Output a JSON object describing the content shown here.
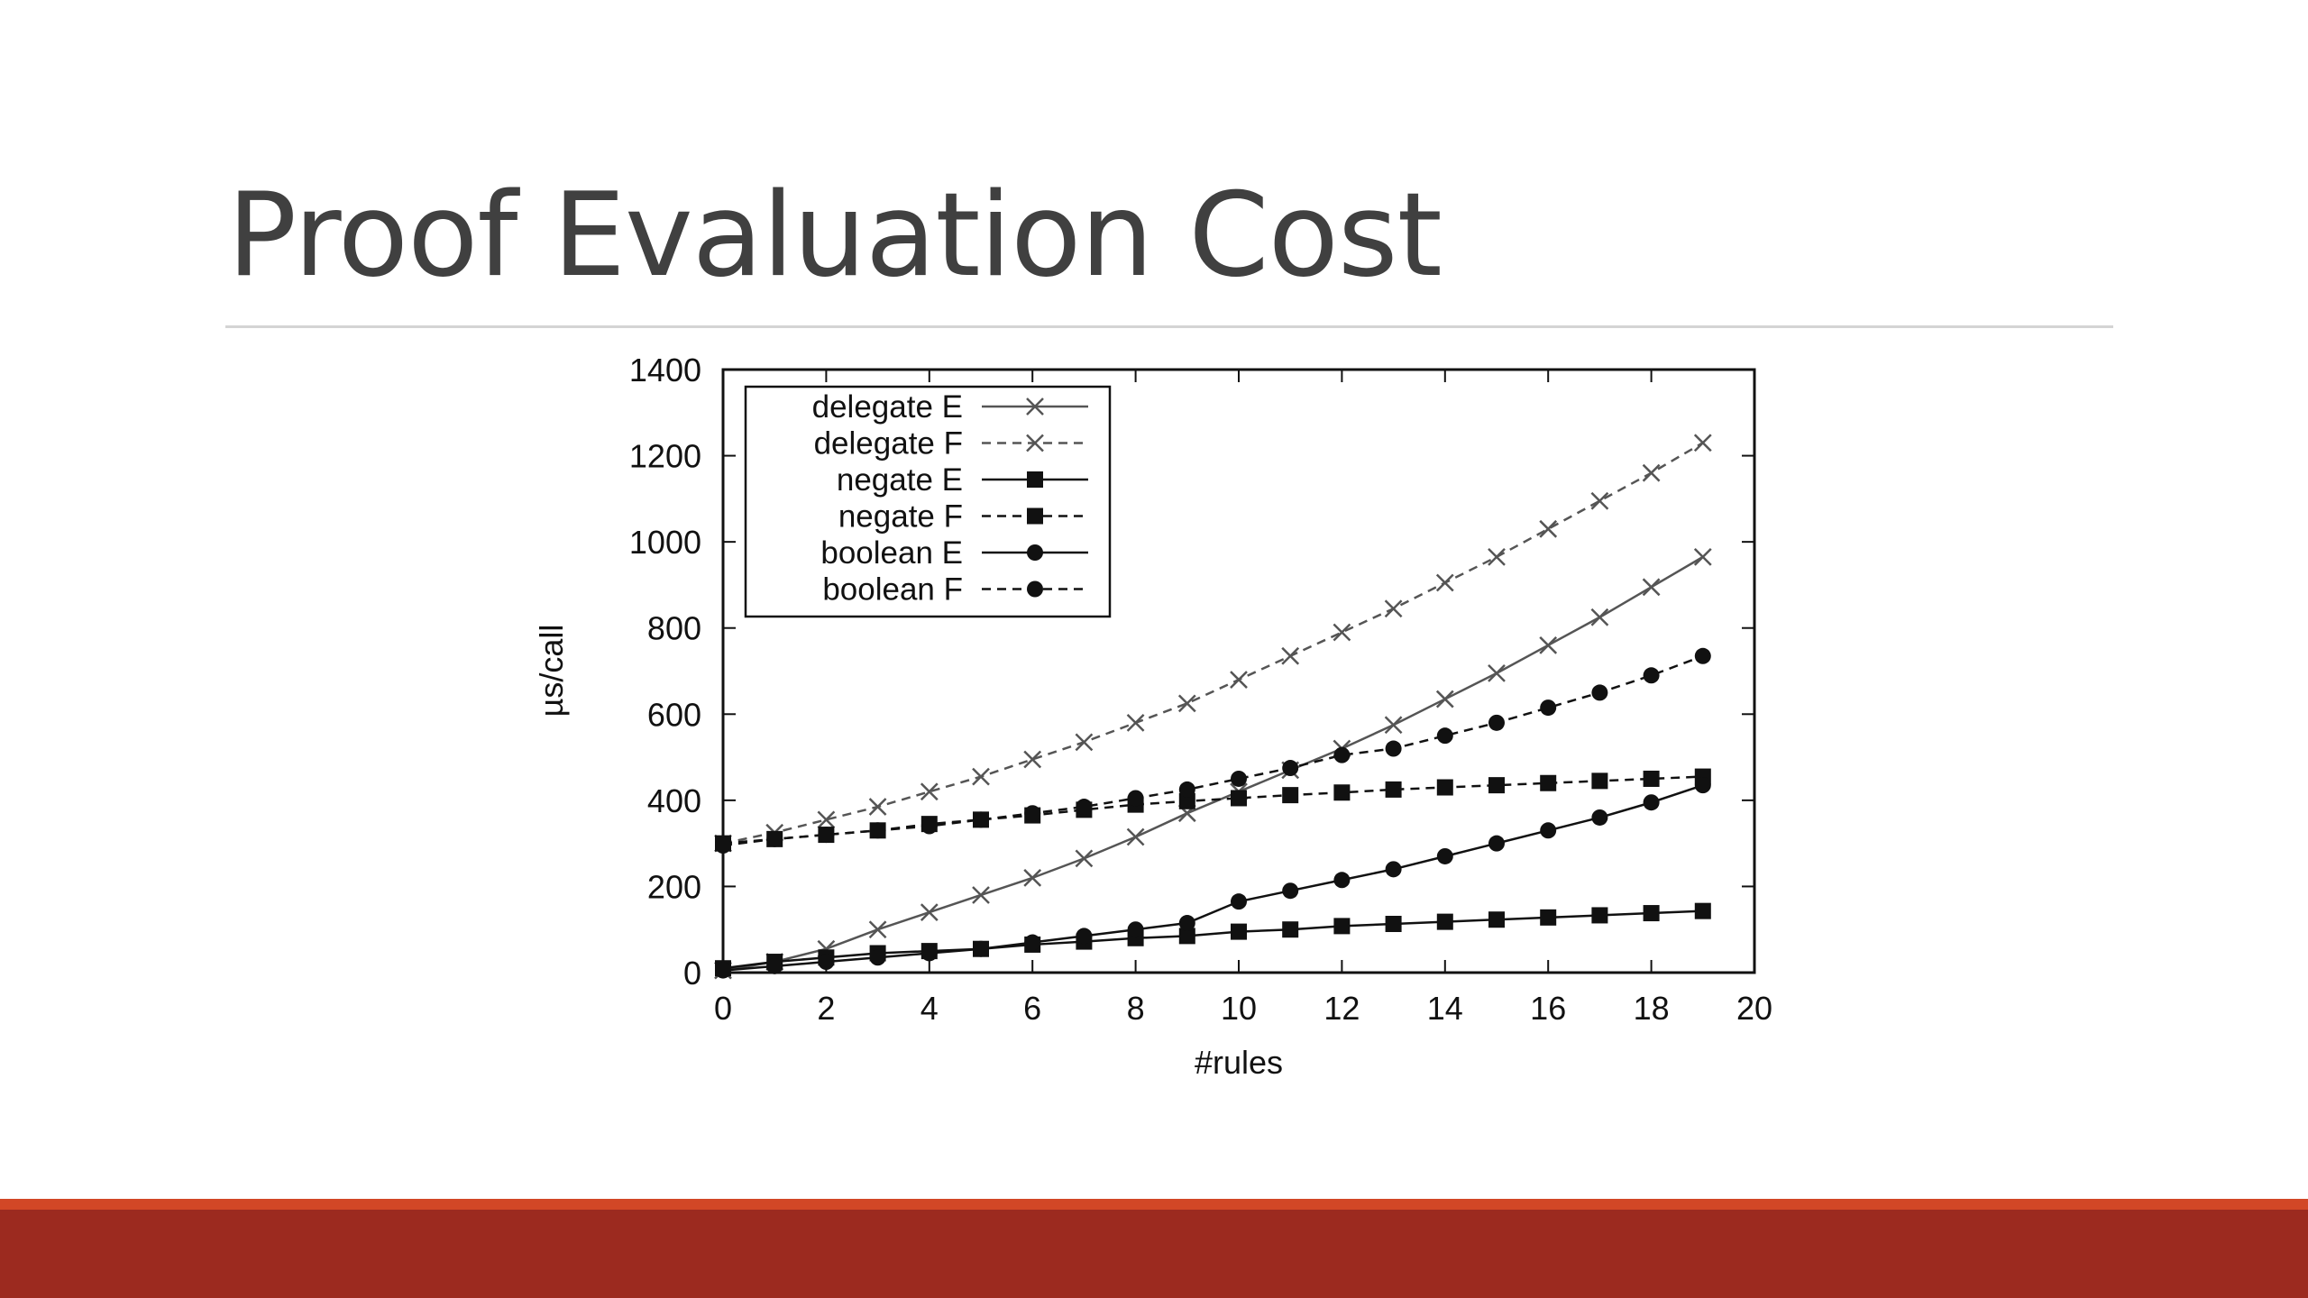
{
  "slide": {
    "title": "Proof Evaluation Cost"
  },
  "colors": {
    "title_text": "#404040",
    "rule": "#d4d4d4",
    "accent_thin": "#d24726",
    "accent_band": "#9c2a1f",
    "plot_ink": "#111111",
    "delegate_ink": "#555555"
  },
  "chart_data": {
    "type": "line",
    "xlabel": "#rules",
    "ylabel": "µs/call",
    "xlim": [
      0,
      20
    ],
    "ylim": [
      0,
      1400
    ],
    "xticks": [
      0,
      2,
      4,
      6,
      8,
      10,
      12,
      14,
      16,
      18,
      20
    ],
    "yticks": [
      0,
      200,
      400,
      600,
      800,
      1000,
      1200,
      1400
    ],
    "legend_position": "top-left",
    "x": [
      0,
      1,
      2,
      3,
      4,
      5,
      6,
      7,
      8,
      9,
      10,
      11,
      12,
      13,
      14,
      15,
      16,
      17,
      18,
      19
    ],
    "series": [
      {
        "name": "delegate E",
        "marker": "cross",
        "line": "solid",
        "values": [
          5,
          25,
          55,
          100,
          140,
          180,
          220,
          265,
          315,
          370,
          420,
          470,
          520,
          575,
          635,
          695,
          760,
          825,
          895,
          965
        ]
      },
      {
        "name": "delegate F",
        "marker": "cross",
        "line": "dashed",
        "values": [
          300,
          325,
          355,
          385,
          420,
          455,
          495,
          535,
          580,
          625,
          680,
          735,
          790,
          845,
          905,
          965,
          1030,
          1095,
          1160,
          1230
        ]
      },
      {
        "name": "negate E",
        "marker": "square",
        "line": "solid",
        "values": [
          10,
          25,
          35,
          45,
          50,
          55,
          65,
          72,
          80,
          85,
          95,
          100,
          108,
          113,
          118,
          123,
          128,
          133,
          138,
          143
        ]
      },
      {
        "name": "negate F",
        "marker": "square",
        "line": "dashed",
        "values": [
          300,
          310,
          320,
          330,
          345,
          355,
          365,
          378,
          390,
          398,
          405,
          412,
          418,
          425,
          430,
          435,
          440,
          445,
          450,
          455
        ]
      },
      {
        "name": "boolean E",
        "marker": "circle",
        "line": "solid",
        "values": [
          5,
          15,
          25,
          35,
          45,
          55,
          70,
          85,
          100,
          115,
          165,
          190,
          215,
          240,
          270,
          300,
          330,
          360,
          395,
          435
        ]
      },
      {
        "name": "boolean F",
        "marker": "circle",
        "line": "dashed",
        "values": [
          295,
          310,
          320,
          330,
          340,
          355,
          370,
          385,
          405,
          425,
          450,
          475,
          505,
          520,
          550,
          580,
          615,
          650,
          690,
          735
        ]
      }
    ]
  }
}
